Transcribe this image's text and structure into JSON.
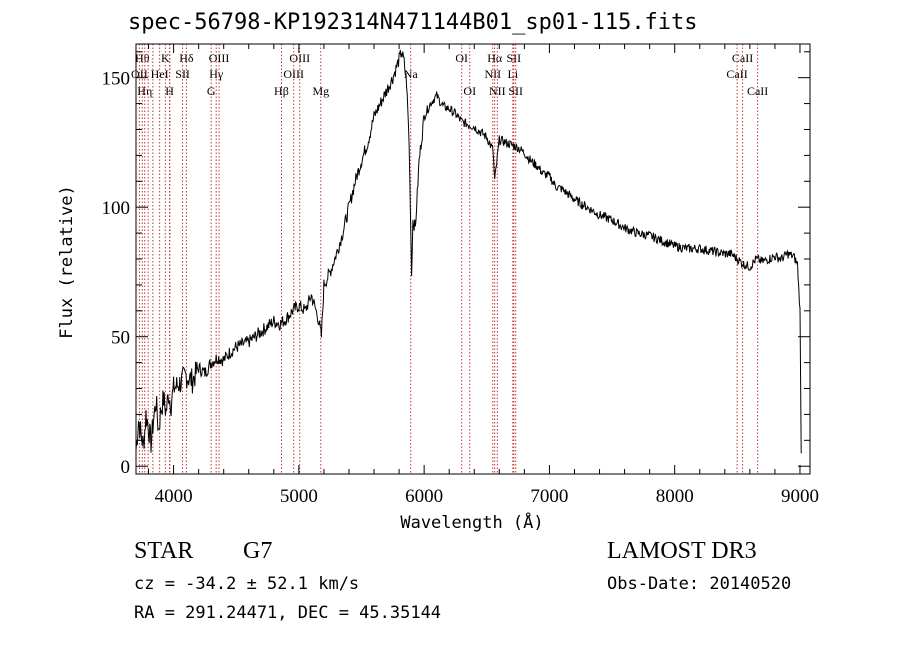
{
  "chart_data": {
    "type": "line",
    "title": "spec-56798-KP192314N471144B01_sp01-115.fits",
    "xlabel": "Wavelength (Å)",
    "ylabel": "Flux (relative)",
    "xlim": [
      3700,
      9080
    ],
    "ylim": [
      -3,
      163
    ],
    "xticks": [
      4000,
      5000,
      6000,
      7000,
      8000,
      9000
    ],
    "yticks": [
      0,
      50,
      100,
      150
    ],
    "series": [
      {
        "name": "spectrum",
        "x": [
          3700,
          3720,
          3740,
          3760,
          3780,
          3800,
          3820,
          3840,
          3860,
          3880,
          3900,
          3920,
          3940,
          3960,
          3980,
          4000,
          4050,
          4100,
          4150,
          4200,
          4250,
          4300,
          4350,
          4400,
          4450,
          4500,
          4550,
          4600,
          4650,
          4700,
          4750,
          4800,
          4850,
          4900,
          4950,
          5000,
          5050,
          5100,
          5150,
          5180,
          5200,
          5250,
          5300,
          5350,
          5400,
          5450,
          5500,
          5550,
          5600,
          5650,
          5700,
          5750,
          5800,
          5820,
          5840,
          5860,
          5880,
          5890,
          5900,
          5910,
          5930,
          5960,
          6000,
          6050,
          6080,
          6100,
          6150,
          6200,
          6250,
          6300,
          6350,
          6400,
          6450,
          6500,
          6550,
          6563,
          6600,
          6650,
          6700,
          6750,
          6800,
          6850,
          6900,
          6950,
          7000,
          7050,
          7100,
          7200,
          7300,
          7400,
          7500,
          7600,
          7700,
          7800,
          7900,
          8000,
          8100,
          8200,
          8300,
          8400,
          8450,
          8500,
          8550,
          8600,
          8650,
          8700,
          8750,
          8800,
          8850,
          8900,
          8950,
          8980,
          9000,
          9010
        ],
        "values": [
          6,
          18,
          12,
          8,
          20,
          15,
          9,
          18,
          25,
          14,
          22,
          26,
          21,
          28,
          24,
          30,
          32,
          35,
          33,
          38,
          36,
          40,
          42,
          41,
          44,
          46,
          47,
          48,
          50,
          52,
          54,
          56,
          55,
          57,
          60,
          62,
          60,
          66,
          58,
          50,
          70,
          75,
          82,
          90,
          100,
          110,
          118,
          125,
          135,
          140,
          145,
          150,
          157,
          160,
          156,
          148,
          125,
          100,
          74,
          95,
          92,
          118,
          135,
          140,
          142,
          143,
          139,
          138,
          136,
          133,
          132,
          131,
          129,
          127,
          122,
          110,
          126,
          125,
          124,
          123,
          121,
          118,
          116,
          113,
          112,
          108,
          107,
          103,
          100,
          97,
          95,
          92,
          90,
          89,
          87,
          85,
          84,
          84,
          83,
          82,
          82,
          80,
          78,
          77,
          80,
          79,
          80,
          81,
          80,
          82,
          81,
          78,
          60,
          5
        ]
      }
    ],
    "lines": [
      {
        "wl": 3750,
        "label": "Hθ",
        "row": 1
      },
      {
        "wl": 3727,
        "label": "OII",
        "row": 2
      },
      {
        "wl": 3770,
        "label": "Hη",
        "row": 3
      },
      {
        "wl": 3797,
        "label": "",
        "row": 0
      },
      {
        "wl": 3835,
        "label": "",
        "row": 0
      },
      {
        "wl": 3889,
        "label": "HeI",
        "row": 2
      },
      {
        "wl": 3934,
        "label": "K",
        "row": 1
      },
      {
        "wl": 3968,
        "label": "H",
        "row": 3
      },
      {
        "wl": 3970,
        "label": "",
        "row": 0
      },
      {
        "wl": 4072,
        "label": "SII",
        "row": 2
      },
      {
        "wl": 4102,
        "label": "Hδ",
        "row": 1
      },
      {
        "wl": 4300,
        "label": "G",
        "row": 3
      },
      {
        "wl": 4340,
        "label": "Hγ",
        "row": 2
      },
      {
        "wl": 4363,
        "label": "OIII",
        "row": 1
      },
      {
        "wl": 4861,
        "label": "Hβ",
        "row": 3
      },
      {
        "wl": 4959,
        "label": "OIII",
        "row": 2
      },
      {
        "wl": 5007,
        "label": "OIII",
        "row": 1
      },
      {
        "wl": 5175,
        "label": "Mg",
        "row": 3
      },
      {
        "wl": 5893,
        "label": "Na",
        "row": 2
      },
      {
        "wl": 6300,
        "label": "OI",
        "row": 1
      },
      {
        "wl": 6364,
        "label": "OI",
        "row": 3
      },
      {
        "wl": 6548,
        "label": "NII",
        "row": 2
      },
      {
        "wl": 6563,
        "label": "Hα",
        "row": 1
      },
      {
        "wl": 6584,
        "label": "NII",
        "row": 3
      },
      {
        "wl": 6708,
        "label": "Li",
        "row": 2
      },
      {
        "wl": 6716,
        "label": "SII",
        "row": 1
      },
      {
        "wl": 6731,
        "label": "SII",
        "row": 3
      },
      {
        "wl": 8498,
        "label": "CaII",
        "row": 2
      },
      {
        "wl": 8542,
        "label": "CaII",
        "row": 1
      },
      {
        "wl": 8662,
        "label": "CaII",
        "row": 3
      }
    ]
  },
  "info": {
    "object_class": "STAR",
    "subclass": "G7",
    "survey": "LAMOST DR3",
    "cz": "cz = -34.2 ± 52.1 km/s",
    "obs_date": "Obs-Date: 20140520",
    "coords": "RA = 291.24471, DEC =  45.35144"
  }
}
